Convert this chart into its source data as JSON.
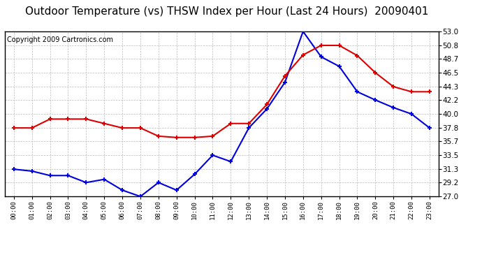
{
  "title": "Outdoor Temperature (vs) THSW Index per Hour (Last 24 Hours)  20090401",
  "copyright": "Copyright 2009 Cartronics.com",
  "hours": [
    "00:00",
    "01:00",
    "02:00",
    "03:00",
    "04:00",
    "05:00",
    "06:00",
    "07:00",
    "08:00",
    "09:00",
    "10:00",
    "11:00",
    "12:00",
    "13:00",
    "14:00",
    "15:00",
    "16:00",
    "17:00",
    "18:00",
    "19:00",
    "20:00",
    "21:00",
    "22:00",
    "23:00"
  ],
  "temp_blue": [
    31.3,
    31.0,
    30.3,
    30.3,
    29.2,
    29.7,
    28.0,
    27.0,
    29.2,
    28.0,
    30.5,
    33.5,
    32.5,
    37.8,
    40.8,
    45.0,
    53.0,
    49.0,
    47.5,
    43.5,
    42.2,
    41.0,
    40.0,
    37.8
  ],
  "thsw_red": [
    37.8,
    37.8,
    39.2,
    39.2,
    39.2,
    38.5,
    37.8,
    37.8,
    36.5,
    36.3,
    36.3,
    36.5,
    38.5,
    38.5,
    41.5,
    46.0,
    49.3,
    50.8,
    50.8,
    49.2,
    46.5,
    44.3,
    43.5,
    43.5
  ],
  "ylim": [
    27.0,
    53.0
  ],
  "yticks": [
    27.0,
    29.2,
    31.3,
    33.5,
    35.7,
    37.8,
    40.0,
    42.2,
    44.3,
    46.5,
    48.7,
    50.8,
    53.0
  ],
  "blue_color": "#0000dd",
  "red_color": "#dd0000",
  "bg_color": "#ffffff",
  "grid_color": "#bbbbbb",
  "title_fontsize": 11,
  "copyright_fontsize": 7
}
